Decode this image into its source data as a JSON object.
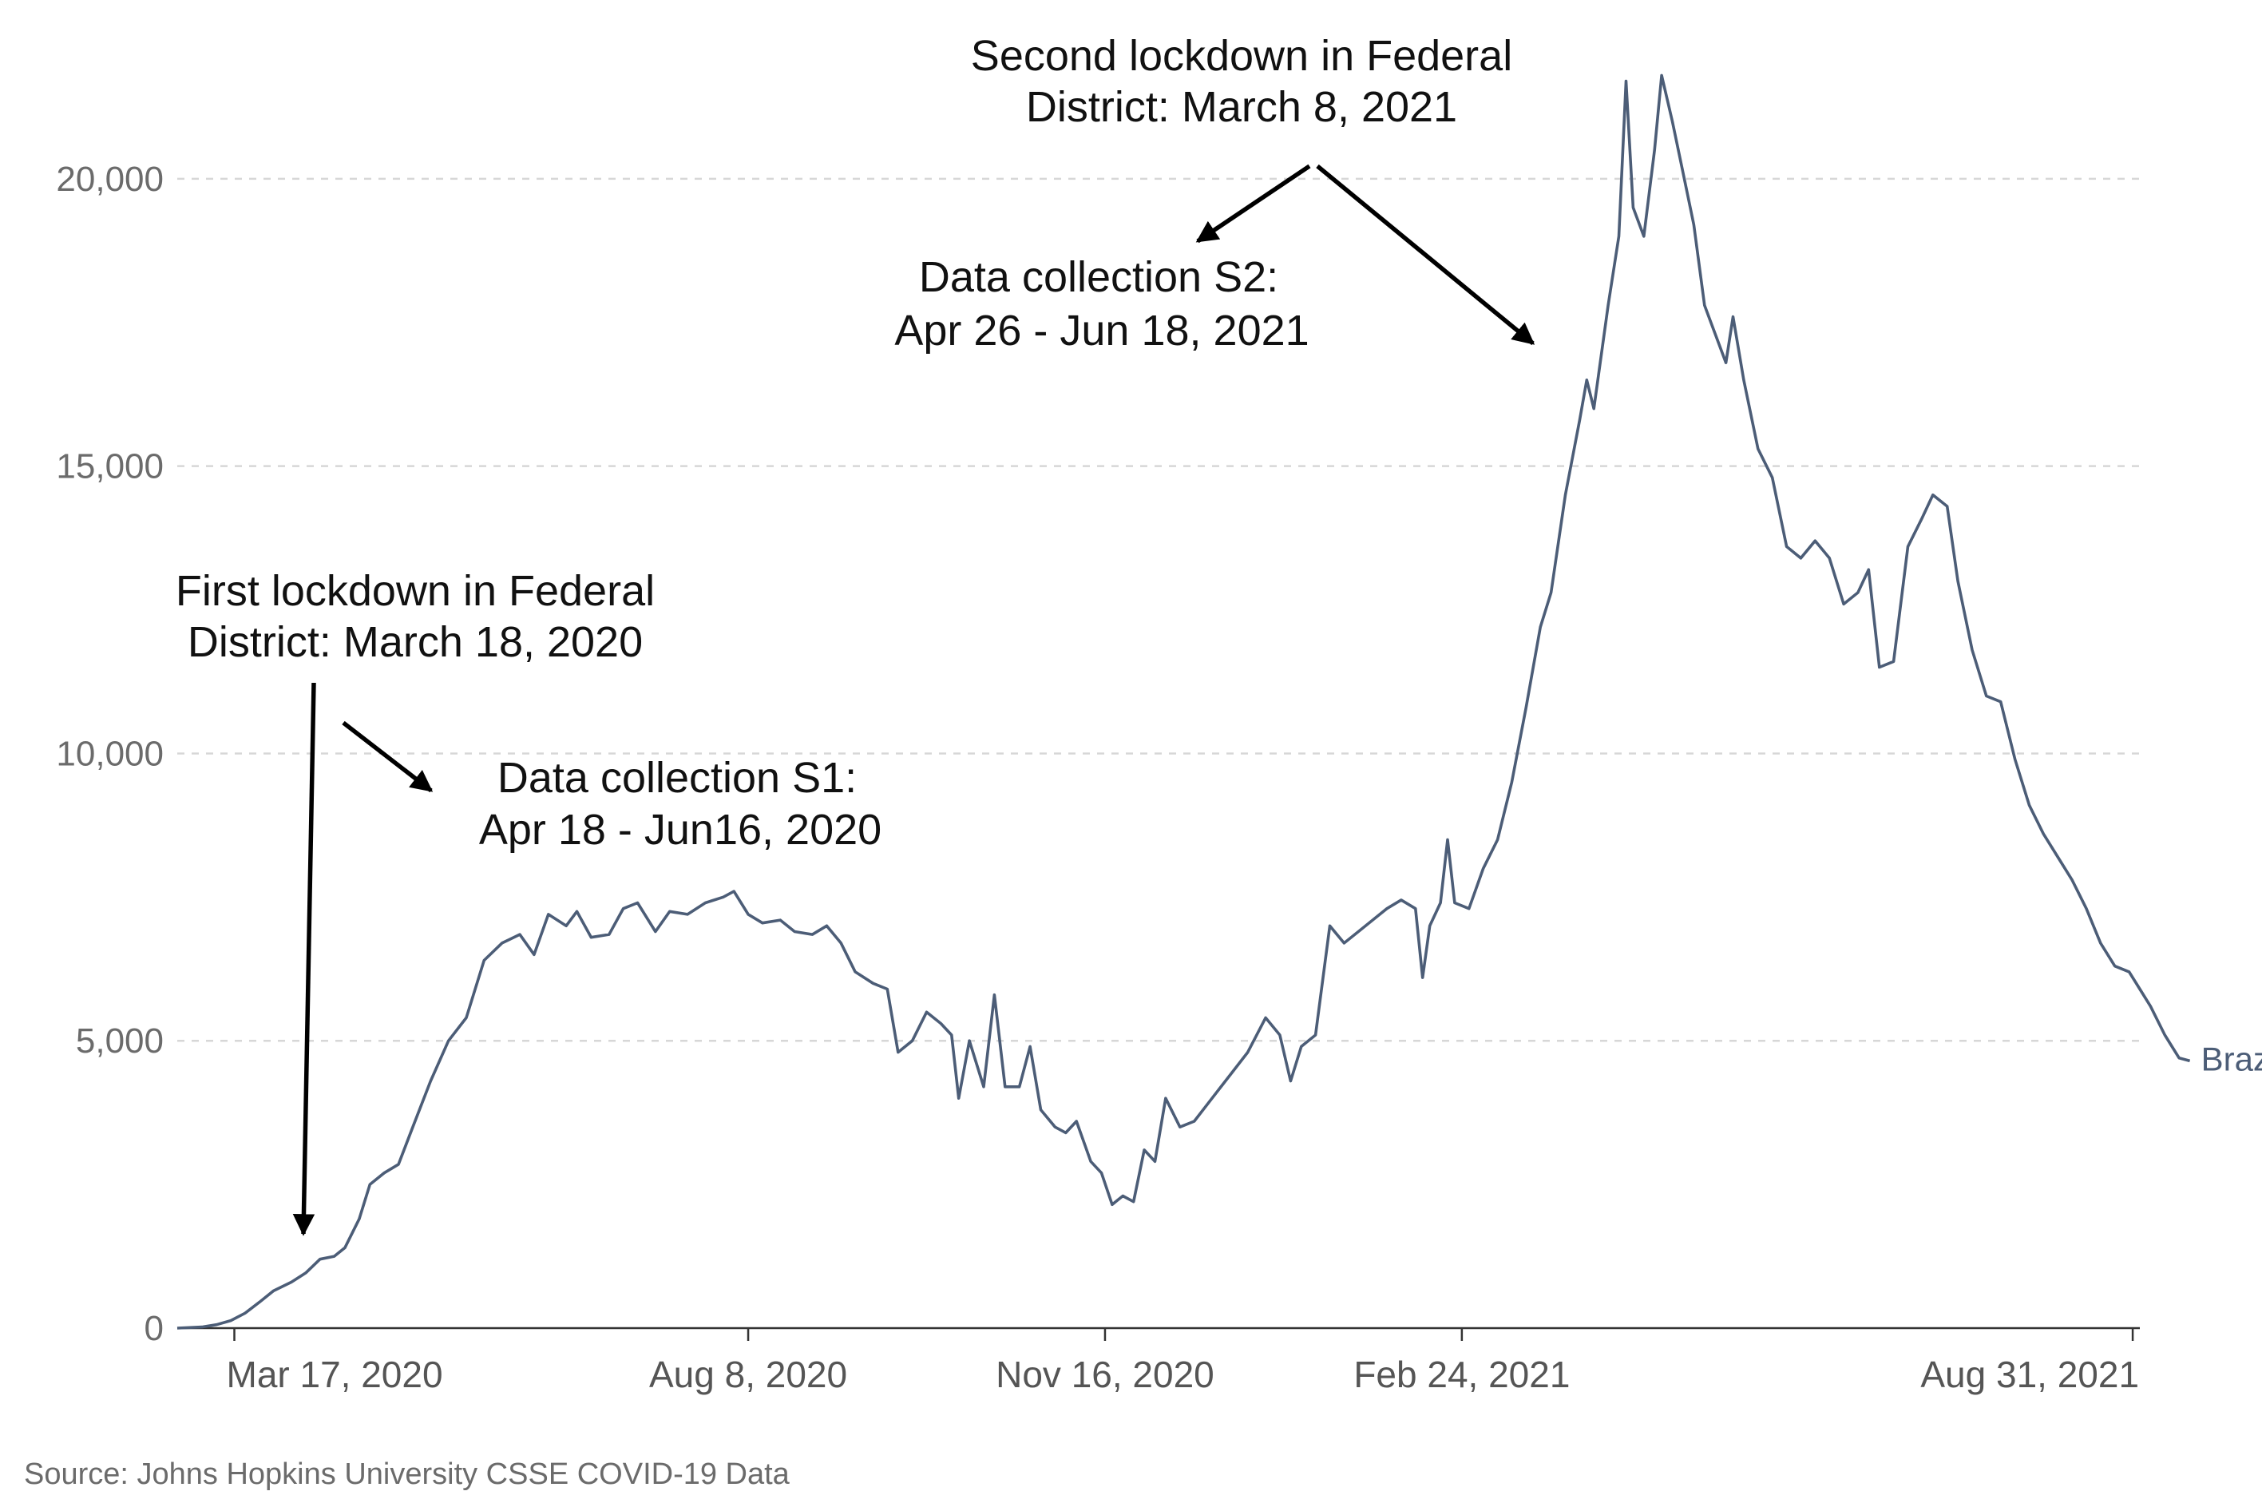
{
  "chart_data": {
    "type": "line",
    "title": "",
    "xlabel": "",
    "ylabel": "",
    "ylim": [
      0,
      22000
    ],
    "x_range": [
      "2020-03-01",
      "2021-09-02"
    ],
    "yticks": [
      {
        "value": 0,
        "label": "0"
      },
      {
        "value": 5000,
        "label": "5,000"
      },
      {
        "value": 10000,
        "label": "10,000"
      },
      {
        "value": 15000,
        "label": "15,000"
      },
      {
        "value": 20000,
        "label": "20,000"
      }
    ],
    "xticks": [
      {
        "date": "2020-03-17",
        "label": "Mar 17, 2020"
      },
      {
        "date": "2020-08-08",
        "label": "Aug 8, 2020"
      },
      {
        "date": "2020-11-16",
        "label": "Nov 16, 2020"
      },
      {
        "date": "2021-02-24",
        "label": "Feb 24, 2021"
      },
      {
        "date": "2021-08-31",
        "label": "Aug 31, 2021"
      }
    ],
    "grid": true,
    "series": [
      {
        "name": "Brazil",
        "color": "#4c5d77",
        "points": [
          [
            "2020-03-01",
            0
          ],
          [
            "2020-03-08",
            20
          ],
          [
            "2020-03-12",
            60
          ],
          [
            "2020-03-16",
            130
          ],
          [
            "2020-03-20",
            260
          ],
          [
            "2020-03-24",
            450
          ],
          [
            "2020-03-28",
            650
          ],
          [
            "2020-04-02",
            800
          ],
          [
            "2020-04-06",
            960
          ],
          [
            "2020-04-10",
            1200
          ],
          [
            "2020-04-14",
            1250
          ],
          [
            "2020-04-17",
            1400
          ],
          [
            "2020-04-21",
            1900
          ],
          [
            "2020-04-24",
            2500
          ],
          [
            "2020-04-28",
            2700
          ],
          [
            "2020-05-02",
            2850
          ],
          [
            "2020-05-06",
            3500
          ],
          [
            "2020-05-11",
            4300
          ],
          [
            "2020-05-16",
            5000
          ],
          [
            "2020-05-21",
            5400
          ],
          [
            "2020-05-26",
            6400
          ],
          [
            "2020-05-31",
            6700
          ],
          [
            "2020-06-05",
            6850
          ],
          [
            "2020-06-09",
            6500
          ],
          [
            "2020-06-13",
            7200
          ],
          [
            "2020-06-18",
            7000
          ],
          [
            "2020-06-21",
            7250
          ],
          [
            "2020-06-25",
            6800
          ],
          [
            "2020-06-30",
            6850
          ],
          [
            "2020-07-04",
            7300
          ],
          [
            "2020-07-08",
            7400
          ],
          [
            "2020-07-13",
            6900
          ],
          [
            "2020-07-17",
            7250
          ],
          [
            "2020-07-22",
            7200
          ],
          [
            "2020-07-27",
            7400
          ],
          [
            "2020-08-01",
            7500
          ],
          [
            "2020-08-04",
            7600
          ],
          [
            "2020-08-08",
            7200
          ],
          [
            "2020-08-12",
            7050
          ],
          [
            "2020-08-17",
            7100
          ],
          [
            "2020-08-21",
            6900
          ],
          [
            "2020-08-26",
            6850
          ],
          [
            "2020-08-30",
            7000
          ],
          [
            "2020-09-03",
            6700
          ],
          [
            "2020-09-07",
            6200
          ],
          [
            "2020-09-12",
            6000
          ],
          [
            "2020-09-16",
            5900
          ],
          [
            "2020-09-19",
            4800
          ],
          [
            "2020-09-23",
            5000
          ],
          [
            "2020-09-27",
            5500
          ],
          [
            "2020-10-01",
            5300
          ],
          [
            "2020-10-04",
            5100
          ],
          [
            "2020-10-06",
            4000
          ],
          [
            "2020-10-09",
            5000
          ],
          [
            "2020-10-13",
            4200
          ],
          [
            "2020-10-16",
            5800
          ],
          [
            "2020-10-19",
            4200
          ],
          [
            "2020-10-23",
            4200
          ],
          [
            "2020-10-26",
            4900
          ],
          [
            "2020-10-29",
            3800
          ],
          [
            "2020-11-02",
            3500
          ],
          [
            "2020-11-05",
            3400
          ],
          [
            "2020-11-08",
            3600
          ],
          [
            "2020-11-12",
            2900
          ],
          [
            "2020-11-15",
            2700
          ],
          [
            "2020-11-18",
            2150
          ],
          [
            "2020-11-21",
            2300
          ],
          [
            "2020-11-24",
            2200
          ],
          [
            "2020-11-27",
            3100
          ],
          [
            "2020-11-30",
            2900
          ],
          [
            "2020-12-03",
            4000
          ],
          [
            "2020-12-07",
            3500
          ],
          [
            "2020-12-11",
            3600
          ],
          [
            "2020-12-16",
            4000
          ],
          [
            "2020-12-21",
            4400
          ],
          [
            "2020-12-26",
            4800
          ],
          [
            "2020-12-31",
            5400
          ],
          [
            "2021-01-04",
            5100
          ],
          [
            "2021-01-07",
            4300
          ],
          [
            "2021-01-10",
            4900
          ],
          [
            "2021-01-14",
            5100
          ],
          [
            "2021-01-18",
            7000
          ],
          [
            "2021-01-22",
            6700
          ],
          [
            "2021-01-26",
            6900
          ],
          [
            "2021-01-30",
            7100
          ],
          [
            "2021-02-03",
            7300
          ],
          [
            "2021-02-07",
            7450
          ],
          [
            "2021-02-11",
            7300
          ],
          [
            "2021-02-13",
            6100
          ],
          [
            "2021-02-15",
            7000
          ],
          [
            "2021-02-18",
            7400
          ],
          [
            "2021-02-20",
            8500
          ],
          [
            "2021-02-22",
            7400
          ],
          [
            "2021-02-26",
            7300
          ],
          [
            "2021-03-02",
            8000
          ],
          [
            "2021-03-06",
            8500
          ],
          [
            "2021-03-10",
            9500
          ],
          [
            "2021-03-14",
            10800
          ],
          [
            "2021-03-18",
            12200
          ],
          [
            "2021-03-21",
            12800
          ],
          [
            "2021-03-25",
            14500
          ],
          [
            "2021-03-29",
            15800
          ],
          [
            "2021-03-31",
            16500
          ],
          [
            "2021-04-02",
            16000
          ],
          [
            "2021-04-06",
            17800
          ],
          [
            "2021-04-09",
            19000
          ],
          [
            "2021-04-11",
            21700
          ],
          [
            "2021-04-13",
            19500
          ],
          [
            "2021-04-16",
            19000
          ],
          [
            "2021-04-19",
            20500
          ],
          [
            "2021-04-21",
            21800
          ],
          [
            "2021-04-24",
            21000
          ],
          [
            "2021-04-27",
            20100
          ],
          [
            "2021-04-30",
            19200
          ],
          [
            "2021-05-03",
            17800
          ],
          [
            "2021-05-06",
            17300
          ],
          [
            "2021-05-09",
            16800
          ],
          [
            "2021-05-11",
            17600
          ],
          [
            "2021-05-14",
            16500
          ],
          [
            "2021-05-18",
            15300
          ],
          [
            "2021-05-22",
            14800
          ],
          [
            "2021-05-26",
            13600
          ],
          [
            "2021-05-30",
            13400
          ],
          [
            "2021-06-03",
            13700
          ],
          [
            "2021-06-07",
            13400
          ],
          [
            "2021-06-11",
            12600
          ],
          [
            "2021-06-15",
            12800
          ],
          [
            "2021-06-18",
            13200
          ],
          [
            "2021-06-21",
            11500
          ],
          [
            "2021-06-25",
            11600
          ],
          [
            "2021-06-29",
            13600
          ],
          [
            "2021-07-03",
            14100
          ],
          [
            "2021-07-06",
            14500
          ],
          [
            "2021-07-10",
            14300
          ],
          [
            "2021-07-13",
            13000
          ],
          [
            "2021-07-17",
            11800
          ],
          [
            "2021-07-21",
            11000
          ],
          [
            "2021-07-25",
            10900
          ],
          [
            "2021-07-29",
            9900
          ],
          [
            "2021-08-02",
            9100
          ],
          [
            "2021-08-06",
            8600
          ],
          [
            "2021-08-10",
            8200
          ],
          [
            "2021-08-14",
            7800
          ],
          [
            "2021-08-18",
            7300
          ],
          [
            "2021-08-22",
            6700
          ],
          [
            "2021-08-26",
            6300
          ],
          [
            "2021-08-30",
            6200
          ],
          [
            "2021-09-02",
            5900
          ],
          [
            "2021-09-05",
            5600
          ],
          [
            "2021-09-09",
            5100
          ],
          [
            "2021-09-13",
            4700
          ],
          [
            "2021-09-16",
            4650
          ]
        ]
      }
    ],
    "annotations": [
      {
        "id": "first_lockdown",
        "lines": [
          "First lockdown in Federal",
          "District: March 18, 2020"
        ]
      },
      {
        "id": "s1",
        "lines": [
          "Data collection S1:",
          "Apr 18 - Jun16, 2020"
        ]
      },
      {
        "id": "second_lockdown",
        "lines": [
          "Second lockdown in Federal",
          "District: March 8, 2021"
        ]
      },
      {
        "id": "s2",
        "lines": [
          "Data collection S2:",
          "Apr 26 - Jun 18, 2021"
        ]
      }
    ],
    "series_label": "Brazil",
    "source": "Source: Johns Hopkins University CSSE COVID-19 Data"
  }
}
